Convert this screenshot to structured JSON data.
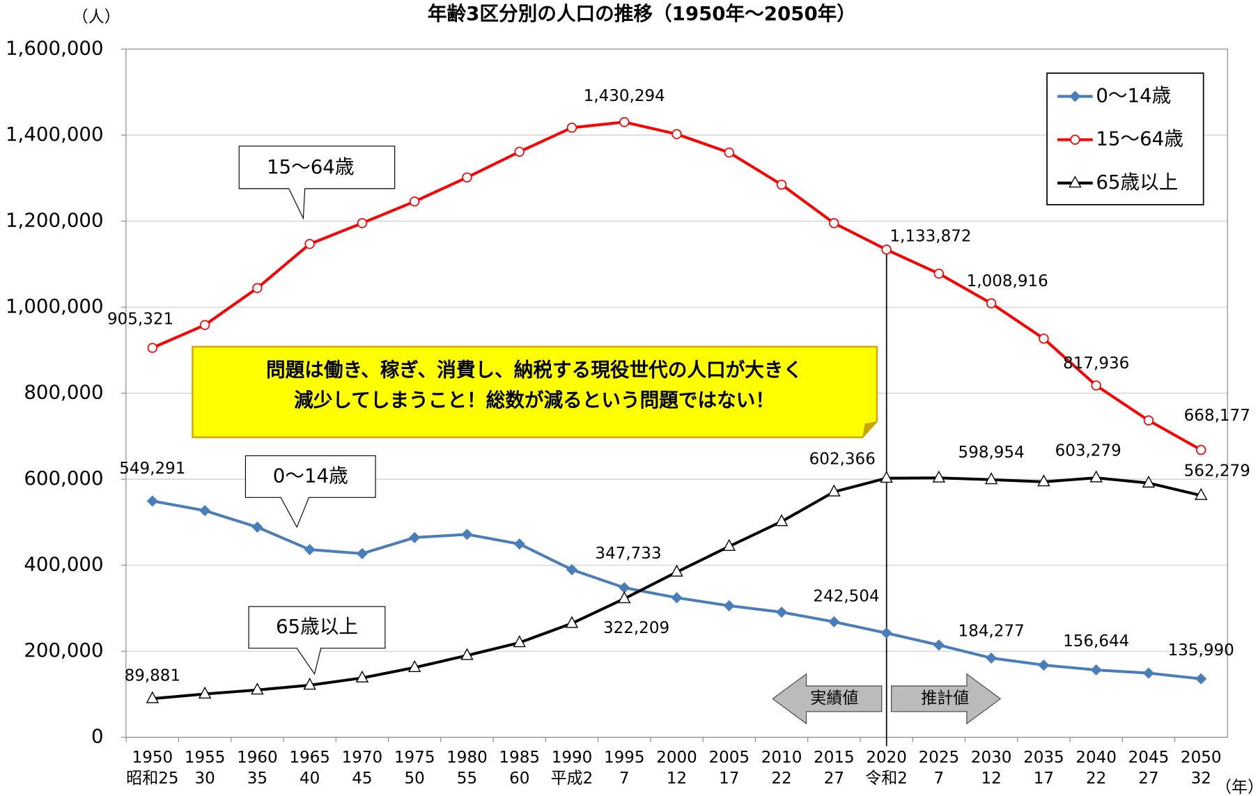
{
  "chart_data": {
    "type": "line",
    "title": "年齢3区分別の人口の推移（1950年～2050年）",
    "y_unit": "（人）",
    "x_unit": "（年）",
    "categories": [
      "1950",
      "1955",
      "1960",
      "1965",
      "1970",
      "1975",
      "1980",
      "1985",
      "1990",
      "1995",
      "2000",
      "2005",
      "2010",
      "2015",
      "2020",
      "2025",
      "2030",
      "2035",
      "2040",
      "2045",
      "2050"
    ],
    "era_labels": [
      "昭和25",
      "30",
      "35",
      "40",
      "45",
      "50",
      "55",
      "60",
      "平成2",
      "7",
      "12",
      "17",
      "22",
      "27",
      "令和2",
      "7",
      "12",
      "17",
      "22",
      "27",
      "32"
    ],
    "ylim": [
      0,
      1600000
    ],
    "yticks": [
      0,
      {
        "value": 200000,
        "label": "200,000"
      },
      {
        "value": 400000,
        "label": "400,000"
      },
      {
        "value": 600000,
        "label": "600,000"
      },
      {
        "value": 800000,
        "label": "800,000"
      },
      {
        "value": 1000000,
        "label": "1,000,000"
      },
      {
        "value": 1200000,
        "label": "1,200,000"
      },
      {
        "value": 1400000,
        "label": "1,400,000"
      },
      {
        "value": 1600000,
        "label": "1,600,000"
      }
    ],
    "grid": true,
    "legend": "top-right",
    "series": [
      {
        "name": "0～14歳",
        "color": "#4a7ebb",
        "marker": "diamond",
        "values": [
          549291,
          527000,
          488600,
          436400,
          427000,
          464300,
          471800,
          449400,
          389700,
          347733,
          324500,
          305800,
          290900,
          268500,
          242504,
          214400,
          184277,
          167800,
          156644,
          149200,
          135990
        ],
        "value_labels": [
          "549,291",
          null,
          null,
          null,
          null,
          null,
          null,
          null,
          null,
          "347,733",
          null,
          null,
          null,
          null,
          "242,504",
          null,
          "184,277",
          null,
          "156,644",
          null,
          "135,990"
        ]
      },
      {
        "name": "15～64歳",
        "color": "#ff0000",
        "marker": "circle",
        "values": [
          905321,
          958500,
          1044300,
          1146900,
          1195300,
          1245700,
          1301600,
          1361300,
          1417200,
          1430294,
          1402300,
          1359400,
          1284800,
          1195300,
          1133872,
          1077900,
          1008916,
          926800,
          817936,
          736600,
          668177
        ],
        "value_labels": [
          "905,321",
          null,
          null,
          null,
          null,
          null,
          null,
          null,
          null,
          "1,430,294",
          null,
          null,
          null,
          null,
          "1,133,872",
          null,
          "1,008,916",
          null,
          "817,936",
          null,
          "668,177"
        ]
      },
      {
        "name": "65歳以上",
        "color": "#000000",
        "marker": "triangle",
        "values": [
          89881,
          100700,
          110000,
          121200,
          138000,
          162200,
          190200,
          220000,
          264800,
          322209,
          384100,
          443800,
          501600,
          570600,
          602366,
          603000,
          598954,
          594000,
          603279,
          591100,
          562279
        ],
        "value_labels": [
          "89,881",
          null,
          null,
          null,
          null,
          null,
          null,
          null,
          null,
          "322,209",
          null,
          null,
          null,
          null,
          "602,366",
          null,
          "598,954",
          null,
          "603,279",
          null,
          "562,279"
        ]
      }
    ],
    "callouts": [
      "15～64歳",
      "0～14歳",
      "65歳以上"
    ],
    "note": [
      "問題は働き、稼ぎ、消費し、納税する現役世代の人口が大きく",
      "減少してしまうこと！総数が減るという問題ではない！"
    ],
    "arrows": [
      "実績値",
      "推計値"
    ]
  }
}
